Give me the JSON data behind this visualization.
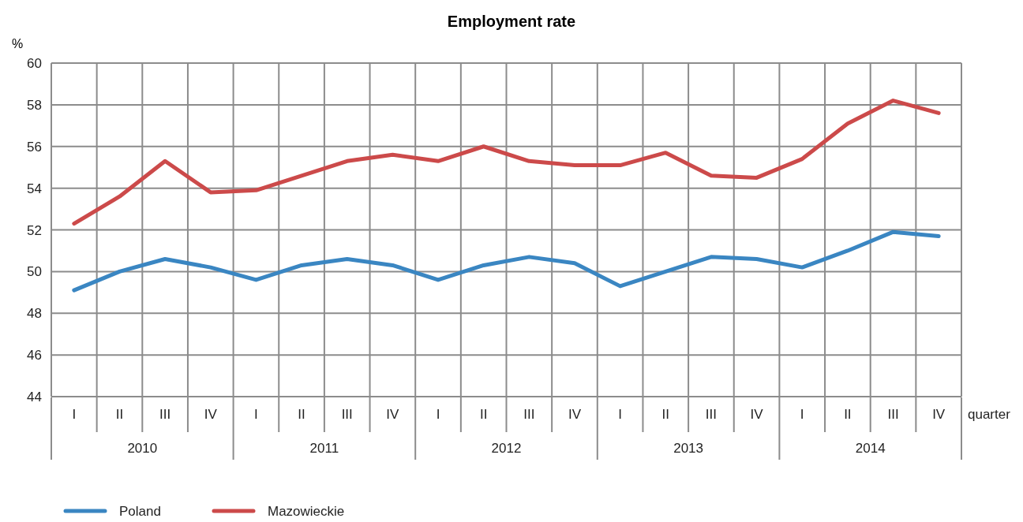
{
  "chart_data": {
    "type": "line",
    "title": "Employment rate",
    "ylabel": "%",
    "xlabel": "quarter",
    "categories": [
      "I",
      "II",
      "III",
      "IV",
      "I",
      "II",
      "III",
      "IV",
      "I",
      "II",
      "III",
      "IV",
      "I",
      "II",
      "III",
      "IV",
      "I",
      "II",
      "III",
      "IV"
    ],
    "annotations": [
      "2010",
      "2011",
      "2012",
      "2013",
      "2014"
    ],
    "series": [
      {
        "name": "Poland",
        "color": "#3a86c2",
        "values": [
          49.1,
          50.0,
          50.6,
          50.2,
          49.6,
          50.3,
          50.6,
          50.3,
          49.6,
          50.3,
          50.7,
          50.4,
          49.3,
          50.0,
          50.7,
          50.6,
          50.2,
          51.0,
          51.9,
          51.7
        ]
      },
      {
        "name": "Mazowieckie",
        "color": "#cc4a4a",
        "values": [
          52.3,
          53.6,
          55.3,
          53.8,
          53.9,
          54.6,
          55.3,
          55.6,
          55.3,
          56.0,
          55.3,
          55.1,
          55.1,
          55.7,
          54.6,
          54.5,
          55.4,
          57.1,
          58.2,
          57.6
        ]
      }
    ],
    "ylim": [
      44,
      60
    ],
    "yticks": [
      44,
      46,
      48,
      50,
      52,
      54,
      56,
      58,
      60
    ],
    "grid": true,
    "legend": "bottom left",
    "marker": "none",
    "line_style": "solid"
  }
}
